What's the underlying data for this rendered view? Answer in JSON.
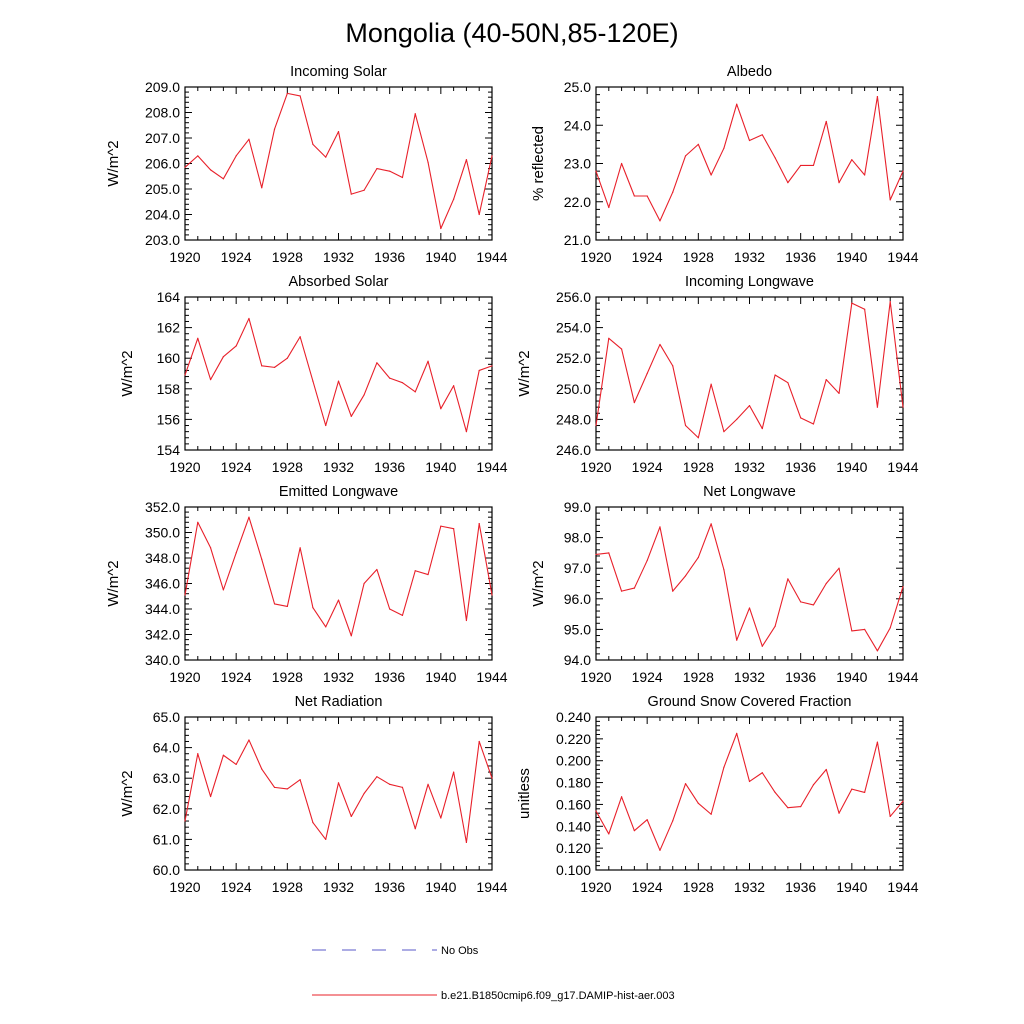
{
  "title": "Mongolia (40-50N,85-120E)",
  "legend": [
    {
      "label": "No Obs",
      "color": "#5a5ac8",
      "style": "dashed"
    },
    {
      "label": "b.e21.B1850cmip6.f09_g17.DAMIP-hist-aer.003",
      "color": "#e8202a",
      "style": "solid"
    }
  ],
  "chart_data": [
    {
      "type": "line",
      "title": "Incoming Solar",
      "ylabel": "W/m^2",
      "xlim": [
        1920,
        1944
      ],
      "ylim": [
        203.0,
        209.0
      ],
      "xticks": [
        "1920",
        "1924",
        "1928",
        "1932",
        "1936",
        "1940",
        "1944"
      ],
      "yticks": [
        "203.0",
        "204.0",
        "205.0",
        "206.0",
        "207.0",
        "208.0",
        "209.0"
      ],
      "x": [
        1920,
        1921,
        1922,
        1923,
        1924,
        1925,
        1926,
        1927,
        1928,
        1929,
        1930,
        1931,
        1932,
        1933,
        1934,
        1935,
        1936,
        1937,
        1938,
        1939,
        1940,
        1941,
        1942,
        1943,
        1944
      ],
      "series": [
        {
          "name": "b.e21.B1850cmip6.f09_g17.DAMIP-hist-aer.003",
          "values": [
            205.85,
            206.3,
            205.75,
            205.4,
            206.3,
            206.95,
            205.05,
            207.35,
            208.75,
            208.65,
            206.75,
            206.25,
            207.25,
            204.8,
            204.95,
            205.8,
            205.7,
            205.45,
            207.95,
            206.05,
            203.45,
            204.6,
            206.15,
            204.0,
            206.3
          ]
        }
      ]
    },
    {
      "type": "line",
      "title": "Albedo",
      "ylabel": "% reflected",
      "xlim": [
        1920,
        1944
      ],
      "ylim": [
        21.0,
        25.0
      ],
      "xticks": [
        "1920",
        "1924",
        "1928",
        "1932",
        "1936",
        "1940",
        "1944"
      ],
      "yticks": [
        "21.0",
        "22.0",
        "23.0",
        "24.0",
        "25.0"
      ],
      "x": [
        1920,
        1921,
        1922,
        1923,
        1924,
        1925,
        1926,
        1927,
        1928,
        1929,
        1930,
        1931,
        1932,
        1933,
        1934,
        1935,
        1936,
        1937,
        1938,
        1939,
        1940,
        1941,
        1942,
        1943,
        1944
      ],
      "series": [
        {
          "name": "b.e21.B1850cmip6.f09_g17.DAMIP-hist-aer.003",
          "values": [
            22.8,
            21.85,
            23.0,
            22.15,
            22.15,
            21.5,
            22.25,
            23.2,
            23.5,
            22.7,
            23.4,
            24.55,
            23.6,
            23.75,
            23.15,
            22.5,
            22.95,
            22.95,
            24.1,
            22.5,
            23.1,
            22.7,
            24.75,
            22.05,
            22.8
          ]
        }
      ]
    },
    {
      "type": "line",
      "title": "Absorbed Solar",
      "ylabel": "W/m^2",
      "xlim": [
        1920,
        1944
      ],
      "ylim": [
        154,
        164
      ],
      "xticks": [
        "1920",
        "1924",
        "1928",
        "1932",
        "1936",
        "1940",
        "1944"
      ],
      "yticks": [
        "154",
        "156",
        "158",
        "160",
        "162",
        "164"
      ],
      "x": [
        1920,
        1921,
        1922,
        1923,
        1924,
        1925,
        1926,
        1927,
        1928,
        1929,
        1930,
        1931,
        1932,
        1933,
        1934,
        1935,
        1936,
        1937,
        1938,
        1939,
        1940,
        1941,
        1942,
        1943,
        1944
      ],
      "series": [
        {
          "name": "b.e21.B1850cmip6.f09_g17.DAMIP-hist-aer.003",
          "values": [
            158.9,
            161.3,
            158.6,
            160.1,
            160.8,
            162.6,
            159.5,
            159.4,
            160.0,
            161.4,
            158.5,
            155.6,
            158.5,
            156.2,
            157.6,
            159.7,
            158.7,
            158.4,
            157.8,
            159.8,
            156.7,
            158.2,
            155.2,
            159.2,
            159.5
          ]
        }
      ]
    },
    {
      "type": "line",
      "title": "Incoming Longwave",
      "ylabel": "W/m^2",
      "xlim": [
        1920,
        1944
      ],
      "ylim": [
        246.0,
        256.0
      ],
      "xticks": [
        "1920",
        "1924",
        "1928",
        "1932",
        "1936",
        "1940",
        "1944"
      ],
      "yticks": [
        "246.0",
        "248.0",
        "250.0",
        "252.0",
        "254.0",
        "256.0"
      ],
      "x": [
        1920,
        1921,
        1922,
        1923,
        1924,
        1925,
        1926,
        1927,
        1928,
        1929,
        1930,
        1931,
        1932,
        1933,
        1934,
        1935,
        1936,
        1937,
        1938,
        1939,
        1940,
        1941,
        1942,
        1943,
        1944
      ],
      "series": [
        {
          "name": "b.e21.B1850cmip6.f09_g17.DAMIP-hist-aer.003",
          "values": [
            247.6,
            253.3,
            252.6,
            249.1,
            251.0,
            252.9,
            251.5,
            247.6,
            246.8,
            250.3,
            247.2,
            248.0,
            248.9,
            247.4,
            250.9,
            250.4,
            248.1,
            247.7,
            250.6,
            249.7,
            255.6,
            255.2,
            248.8,
            255.7,
            248.8
          ]
        }
      ]
    },
    {
      "type": "line",
      "title": "Emitted Longwave",
      "ylabel": "W/m^2",
      "xlim": [
        1920,
        1944
      ],
      "ylim": [
        340.0,
        352.0
      ],
      "xticks": [
        "1920",
        "1924",
        "1928",
        "1932",
        "1936",
        "1940",
        "1944"
      ],
      "yticks": [
        "340.0",
        "342.0",
        "344.0",
        "346.0",
        "348.0",
        "350.0",
        "352.0"
      ],
      "x": [
        1920,
        1921,
        1922,
        1923,
        1924,
        1925,
        1926,
        1927,
        1928,
        1929,
        1930,
        1931,
        1932,
        1933,
        1934,
        1935,
        1936,
        1937,
        1938,
        1939,
        1940,
        1941,
        1942,
        1943,
        1944
      ],
      "series": [
        {
          "name": "b.e21.B1850cmip6.f09_g17.DAMIP-hist-aer.003",
          "values": [
            345.1,
            350.8,
            348.8,
            345.5,
            348.4,
            351.2,
            347.9,
            344.4,
            344.2,
            348.8,
            344.1,
            342.6,
            344.7,
            341.9,
            346.0,
            347.1,
            344.0,
            343.5,
            347.0,
            346.7,
            350.5,
            350.3,
            343.1,
            350.7,
            345.1
          ]
        }
      ]
    },
    {
      "type": "line",
      "title": "Net Longwave",
      "ylabel": "W/m^2",
      "xlim": [
        1920,
        1944
      ],
      "ylim": [
        94.0,
        99.0
      ],
      "xticks": [
        "1920",
        "1924",
        "1928",
        "1932",
        "1936",
        "1940",
        "1944"
      ],
      "yticks": [
        "94.0",
        "95.0",
        "96.0",
        "97.0",
        "98.0",
        "99.0"
      ],
      "x": [
        1920,
        1921,
        1922,
        1923,
        1924,
        1925,
        1926,
        1927,
        1928,
        1929,
        1930,
        1931,
        1932,
        1933,
        1934,
        1935,
        1936,
        1937,
        1938,
        1939,
        1940,
        1941,
        1942,
        1943,
        1944
      ],
      "series": [
        {
          "name": "b.e21.B1850cmip6.f09_g17.DAMIP-hist-aer.003",
          "values": [
            97.45,
            97.5,
            96.25,
            96.35,
            97.25,
            98.35,
            96.25,
            96.75,
            97.35,
            98.45,
            96.95,
            94.65,
            95.7,
            94.45,
            95.1,
            96.65,
            95.9,
            95.8,
            96.5,
            97.0,
            94.95,
            95.0,
            94.3,
            95.05,
            96.4
          ]
        }
      ]
    },
    {
      "type": "line",
      "title": "Net Radiation",
      "ylabel": "W/m^2",
      "xlim": [
        1920,
        1944
      ],
      "ylim": [
        60.0,
        65.0
      ],
      "xticks": [
        "1920",
        "1924",
        "1928",
        "1932",
        "1936",
        "1940",
        "1944"
      ],
      "yticks": [
        "60.0",
        "61.0",
        "62.0",
        "63.0",
        "64.0",
        "65.0"
      ],
      "x": [
        1920,
        1921,
        1922,
        1923,
        1924,
        1925,
        1926,
        1927,
        1928,
        1929,
        1930,
        1931,
        1932,
        1933,
        1934,
        1935,
        1936,
        1937,
        1938,
        1939,
        1940,
        1941,
        1942,
        1943,
        1944
      ],
      "series": [
        {
          "name": "b.e21.B1850cmip6.f09_g17.DAMIP-hist-aer.003",
          "values": [
            61.6,
            63.8,
            62.4,
            63.75,
            63.45,
            64.25,
            63.3,
            62.7,
            62.65,
            62.95,
            61.55,
            61.0,
            62.85,
            61.75,
            62.5,
            63.05,
            62.8,
            62.7,
            61.35,
            62.8,
            61.7,
            63.2,
            60.9,
            64.2,
            63.0
          ]
        }
      ]
    },
    {
      "type": "line",
      "title": "Ground Snow Covered Fraction",
      "ylabel": "unitless",
      "xlim": [
        1920,
        1944
      ],
      "ylim": [
        0.1,
        0.24
      ],
      "xticks": [
        "1920",
        "1924",
        "1928",
        "1932",
        "1936",
        "1940",
        "1944"
      ],
      "yticks": [
        "0.100",
        "0.120",
        "0.140",
        "0.160",
        "0.180",
        "0.200",
        "0.220",
        "0.240"
      ],
      "x": [
        1920,
        1921,
        1922,
        1923,
        1924,
        1925,
        1926,
        1927,
        1928,
        1929,
        1930,
        1931,
        1932,
        1933,
        1934,
        1935,
        1936,
        1937,
        1938,
        1939,
        1940,
        1941,
        1942,
        1943,
        1944
      ],
      "series": [
        {
          "name": "b.e21.B1850cmip6.f09_g17.DAMIP-hist-aer.003",
          "values": [
            0.154,
            0.133,
            0.167,
            0.136,
            0.146,
            0.118,
            0.145,
            0.179,
            0.161,
            0.151,
            0.194,
            0.225,
            0.181,
            0.189,
            0.171,
            0.157,
            0.158,
            0.178,
            0.192,
            0.152,
            0.174,
            0.171,
            0.217,
            0.149,
            0.163
          ]
        }
      ]
    }
  ]
}
